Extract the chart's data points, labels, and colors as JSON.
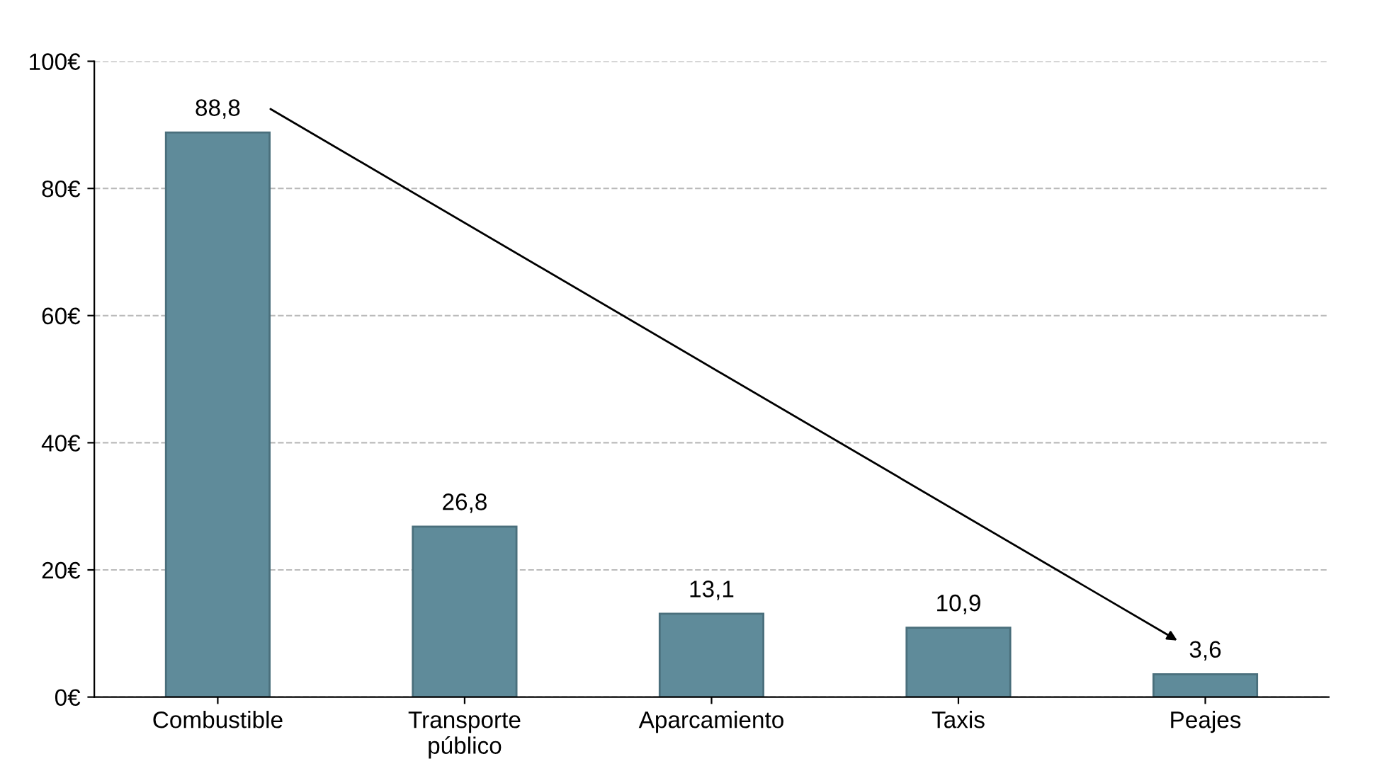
{
  "chart_data": {
    "type": "bar",
    "categories": [
      "Combustible",
      "Transporte\npúblico",
      "Aparcamiento",
      "Taxis",
      "Peajes"
    ],
    "values": [
      88.8,
      26.8,
      13.1,
      10.9,
      3.6
    ],
    "value_labels": [
      "88,8",
      "26,8",
      "13,1",
      "10,9",
      "3,6"
    ],
    "color": "#5f8b9a",
    "ylim": [
      0,
      100
    ],
    "yticks": [
      {
        "value": 0,
        "label": "0€"
      },
      {
        "value": 20,
        "label": "20€"
      },
      {
        "value": 40,
        "label": "40€"
      },
      {
        "value": 60,
        "label": "60€"
      },
      {
        "value": 80,
        "label": "80€"
      },
      {
        "value": 100,
        "label": "100€"
      }
    ],
    "grid": "y",
    "line_style": "dashed",
    "legend": false
  }
}
